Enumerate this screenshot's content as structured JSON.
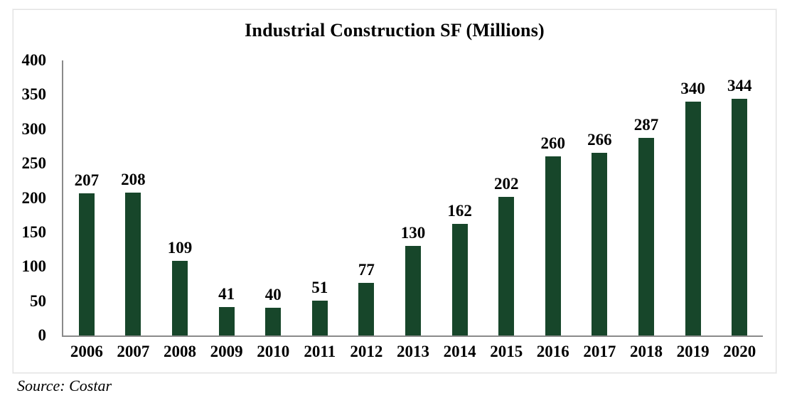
{
  "chart_data": {
    "type": "bar",
    "title": "Industrial Construction SF (Millions)",
    "categories": [
      "2006",
      "2007",
      "2008",
      "2009",
      "2010",
      "2011",
      "2012",
      "2013",
      "2014",
      "2015",
      "2016",
      "2017",
      "2018",
      "2019",
      "2020"
    ],
    "values": [
      207,
      208,
      109,
      41,
      40,
      51,
      77,
      130,
      162,
      202,
      260,
      266,
      287,
      340,
      344
    ],
    "xlabel": "",
    "ylabel": "",
    "ylim": [
      0,
      400
    ],
    "yticks": [
      0,
      50,
      100,
      150,
      200,
      250,
      300,
      350,
      400
    ],
    "grid": false,
    "legend": null,
    "data_labels": true,
    "bar_color": "#17462a",
    "axis_color": "#8a8a8a",
    "label_color": "#000000"
  },
  "source_note": "Source: Costar"
}
